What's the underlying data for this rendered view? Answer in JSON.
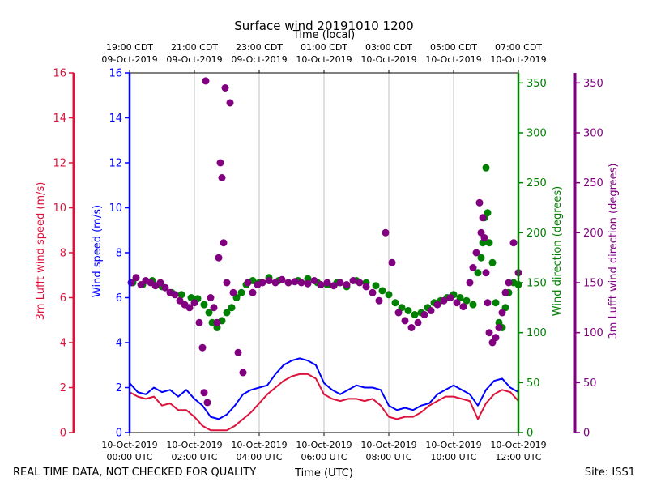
{
  "chart_data": {
    "type": "line",
    "title": "Surface wind 20191010 1200",
    "top_axis_label": "Time (local)",
    "xlabel": "Time (UTC)",
    "footer_left": "REAL TIME DATA, NOT CHECKED FOR QUALITY",
    "footer_right": "Site: ISS1",
    "x_hours_range": [
      0,
      12
    ],
    "bottom_ticks": [
      {
        "hour": 0,
        "line1": "10-Oct-2019",
        "line2": "00:00 UTC"
      },
      {
        "hour": 2,
        "line1": "10-Oct-2019",
        "line2": "02:00 UTC"
      },
      {
        "hour": 4,
        "line1": "10-Oct-2019",
        "line2": "04:00 UTC"
      },
      {
        "hour": 6,
        "line1": "10-Oct-2019",
        "line2": "06:00 UTC"
      },
      {
        "hour": 8,
        "line1": "10-Oct-2019",
        "line2": "08:00 UTC"
      },
      {
        "hour": 10,
        "line1": "10-Oct-2019",
        "line2": "10:00 UTC"
      },
      {
        "hour": 12,
        "line1": "10-Oct-2019",
        "line2": "12:00 UTC"
      }
    ],
    "top_ticks": [
      {
        "hour": 0,
        "line1": "19:00 CDT",
        "line2": "09-Oct-2019"
      },
      {
        "hour": 2,
        "line1": "21:00 CDT",
        "line2": "09-Oct-2019"
      },
      {
        "hour": 4,
        "line1": "23:00 CDT",
        "line2": "09-Oct-2019"
      },
      {
        "hour": 6,
        "line1": "01:00 CDT",
        "line2": "10-Oct-2019"
      },
      {
        "hour": 8,
        "line1": "03:00 CDT",
        "line2": "10-Oct-2019"
      },
      {
        "hour": 10,
        "line1": "05:00 CDT",
        "line2": "10-Oct-2019"
      },
      {
        "hour": 12,
        "line1": "07:00 CDT",
        "line2": "10-Oct-2019"
      }
    ],
    "axes": {
      "lufft_speed": {
        "label": "3m Lufft wind speed (m/s)",
        "range": [
          0,
          16
        ],
        "ticks": [
          0,
          2,
          4,
          6,
          8,
          10,
          12,
          14,
          16
        ],
        "color": "#dc143c"
      },
      "wind_speed": {
        "label": "Wind speed (m/s)",
        "range": [
          0,
          16
        ],
        "ticks": [
          0,
          2,
          4,
          6,
          8,
          10,
          12,
          14,
          16
        ],
        "color": "#0000ff"
      },
      "wind_dir": {
        "label": "Wind direction (degrees)",
        "range": [
          0,
          360
        ],
        "ticks": [
          0,
          50,
          100,
          150,
          200,
          250,
          300,
          350
        ],
        "color": "#008000"
      },
      "lufft_dir": {
        "label": "3m Lufft wind direction (degrees)",
        "range": [
          0,
          360
        ],
        "ticks": [
          0,
          50,
          100,
          150,
          200,
          250,
          300,
          350
        ],
        "color": "#800080"
      }
    },
    "series": [
      {
        "name": "Wind speed (m/s)",
        "axis": "wind_speed",
        "kind": "line",
        "color": "#0000ff",
        "x": [
          0,
          0.25,
          0.5,
          0.75,
          1,
          1.25,
          1.5,
          1.75,
          2,
          2.25,
          2.5,
          2.75,
          3,
          3.25,
          3.5,
          3.75,
          4,
          4.25,
          4.5,
          4.75,
          5,
          5.25,
          5.5,
          5.75,
          6,
          6.25,
          6.5,
          6.75,
          7,
          7.25,
          7.5,
          7.75,
          8,
          8.25,
          8.5,
          8.75,
          9,
          9.25,
          9.5,
          9.75,
          10,
          10.25,
          10.5,
          10.75,
          11,
          11.25,
          11.5,
          11.75,
          12
        ],
        "values": [
          2.2,
          1.8,
          1.7,
          2.0,
          1.8,
          1.9,
          1.6,
          1.9,
          1.5,
          1.2,
          0.7,
          0.6,
          0.8,
          1.2,
          1.7,
          1.9,
          2.0,
          2.1,
          2.6,
          3.0,
          3.2,
          3.3,
          3.2,
          3.0,
          2.2,
          1.9,
          1.7,
          1.9,
          2.1,
          2.0,
          2.0,
          1.9,
          1.2,
          1.0,
          1.1,
          1.0,
          1.2,
          1.3,
          1.7,
          1.9,
          2.1,
          1.9,
          1.7,
          1.2,
          1.9,
          2.3,
          2.4,
          2.0,
          1.8
        ]
      },
      {
        "name": "3m Lufft wind speed (m/s)",
        "axis": "lufft_speed",
        "kind": "line",
        "color": "#dc143c",
        "x": [
          0,
          0.25,
          0.5,
          0.75,
          1,
          1.25,
          1.5,
          1.75,
          2,
          2.25,
          2.5,
          2.75,
          3,
          3.25,
          3.5,
          3.75,
          4,
          4.25,
          4.5,
          4.75,
          5,
          5.25,
          5.5,
          5.75,
          6,
          6.25,
          6.5,
          6.75,
          7,
          7.25,
          7.5,
          7.75,
          8,
          8.25,
          8.5,
          8.75,
          9,
          9.25,
          9.5,
          9.75,
          10,
          10.25,
          10.5,
          10.75,
          11,
          11.25,
          11.5,
          11.75,
          12
        ],
        "values": [
          1.8,
          1.6,
          1.5,
          1.6,
          1.2,
          1.3,
          1.0,
          1.0,
          0.7,
          0.3,
          0.1,
          0.1,
          0.1,
          0.3,
          0.6,
          0.9,
          1.3,
          1.7,
          2.0,
          2.3,
          2.5,
          2.6,
          2.6,
          2.4,
          1.7,
          1.5,
          1.4,
          1.5,
          1.5,
          1.4,
          1.5,
          1.2,
          0.7,
          0.6,
          0.7,
          0.7,
          0.9,
          1.2,
          1.4,
          1.6,
          1.6,
          1.5,
          1.4,
          0.6,
          1.3,
          1.7,
          1.9,
          1.8,
          1.4
        ]
      },
      {
        "name": "Wind direction (degrees)",
        "axis": "wind_dir",
        "kind": "scatter",
        "color": "#008000",
        "x": [
          0.1,
          0.4,
          0.7,
          1.0,
          1.3,
          1.6,
          1.9,
          2.1,
          2.3,
          2.45,
          2.55,
          2.7,
          2.85,
          3.0,
          3.15,
          3.3,
          3.45,
          3.6,
          3.8,
          4.0,
          4.3,
          4.6,
          4.9,
          5.2,
          5.5,
          5.8,
          6.1,
          6.4,
          6.7,
          7.0,
          7.3,
          7.6,
          7.8,
          8.0,
          8.2,
          8.4,
          8.6,
          8.8,
          9.0,
          9.2,
          9.4,
          9.6,
          9.8,
          10.0,
          10.2,
          10.4,
          10.6,
          10.75,
          10.85,
          10.9,
          10.95,
          11.0,
          11.05,
          11.1,
          11.2,
          11.3,
          11.4,
          11.5,
          11.6,
          11.7,
          11.85,
          12.0
        ],
        "values": [
          150,
          148,
          152,
          146,
          140,
          138,
          135,
          134,
          128,
          120,
          110,
          105,
          112,
          120,
          125,
          135,
          140,
          148,
          152,
          150,
          155,
          152,
          150,
          152,
          154,
          150,
          148,
          150,
          146,
          152,
          150,
          147,
          142,
          138,
          130,
          125,
          122,
          118,
          120,
          125,
          130,
          132,
          135,
          138,
          135,
          132,
          128,
          160,
          175,
          190,
          215,
          265,
          220,
          190,
          170,
          130,
          110,
          105,
          125,
          140,
          150,
          148
        ]
      },
      {
        "name": "3m Lufft wind direction (degrees)",
        "axis": "lufft_dir",
        "kind": "scatter",
        "color": "#800080",
        "x": [
          0.05,
          0.2,
          0.35,
          0.5,
          0.65,
          0.8,
          0.95,
          1.1,
          1.25,
          1.4,
          1.55,
          1.7,
          1.85,
          2.0,
          2.15,
          2.25,
          2.3,
          2.35,
          2.4,
          2.5,
          2.6,
          2.7,
          2.75,
          2.8,
          2.85,
          2.9,
          2.95,
          3.0,
          3.1,
          3.2,
          3.35,
          3.5,
          3.65,
          3.8,
          3.95,
          4.1,
          4.3,
          4.5,
          4.7,
          4.9,
          5.1,
          5.3,
          5.5,
          5.7,
          5.9,
          6.1,
          6.3,
          6.5,
          6.7,
          6.9,
          7.1,
          7.3,
          7.5,
          7.7,
          7.9,
          8.1,
          8.3,
          8.5,
          8.7,
          8.9,
          9.1,
          9.3,
          9.5,
          9.7,
          9.9,
          10.1,
          10.3,
          10.5,
          10.6,
          10.7,
          10.8,
          10.85,
          10.9,
          10.95,
          11.0,
          11.05,
          11.1,
          11.2,
          11.3,
          11.4,
          11.5,
          11.6,
          11.7,
          11.85,
          12.0
        ],
        "values": [
          150,
          155,
          148,
          152,
          150,
          147,
          150,
          145,
          140,
          138,
          132,
          128,
          125,
          130,
          110,
          85,
          40,
          352,
          30,
          135,
          125,
          110,
          175,
          270,
          255,
          190,
          345,
          150,
          330,
          140,
          80,
          60,
          150,
          140,
          148,
          150,
          152,
          150,
          153,
          150,
          151,
          150,
          149,
          152,
          148,
          150,
          147,
          150,
          148,
          152,
          150,
          146,
          140,
          132,
          200,
          170,
          120,
          112,
          105,
          110,
          118,
          122,
          128,
          132,
          135,
          130,
          126,
          150,
          165,
          180,
          230,
          200,
          215,
          195,
          160,
          130,
          100,
          90,
          95,
          105,
          120,
          140,
          150,
          190,
          160
        ]
      }
    ]
  }
}
